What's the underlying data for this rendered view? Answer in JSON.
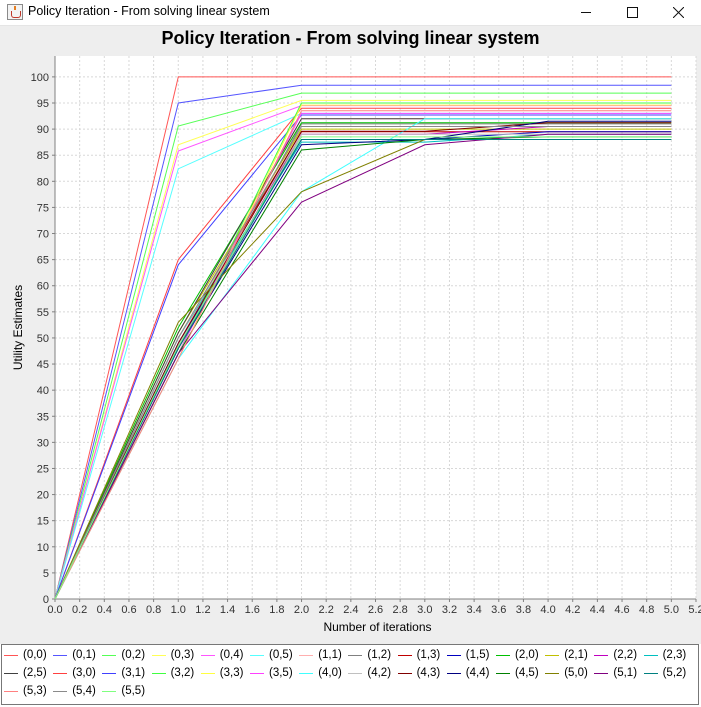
{
  "window": {
    "title": "Policy Iteration - From solving linear system",
    "minimize_icon": "minimize-icon",
    "maximize_icon": "maximize-icon",
    "close_icon": "close-icon"
  },
  "chart_data": {
    "type": "line",
    "title": "Policy Iteration - From solving linear system",
    "xlabel": "Number of iterations",
    "ylabel": "Utility Estimates",
    "xlim": [
      0,
      5.2
    ],
    "ylim": [
      0,
      104
    ],
    "xticks": [
      "0.0",
      "0.2",
      "0.4",
      "0.6",
      "0.8",
      "1.0",
      "1.2",
      "1.4",
      "1.6",
      "1.8",
      "2.0",
      "2.2",
      "2.4",
      "2.6",
      "2.8",
      "3.0",
      "3.2",
      "3.4",
      "3.6",
      "3.8",
      "4.0",
      "4.2",
      "4.4",
      "4.6",
      "4.8",
      "5.0",
      "5.2"
    ],
    "yticks": [
      "0",
      "5",
      "10",
      "15",
      "20",
      "25",
      "30",
      "35",
      "40",
      "45",
      "50",
      "55",
      "60",
      "65",
      "70",
      "75",
      "80",
      "85",
      "90",
      "95",
      "100"
    ],
    "grid": true,
    "legend_position": "bottom",
    "x": [
      0,
      1,
      2,
      3,
      4,
      5
    ],
    "series": [
      {
        "name": "(0,0)",
        "color": "#ff5555",
        "values": [
          0,
          100.0,
          100.0,
          100.0,
          100.0,
          100.0
        ]
      },
      {
        "name": "(0,1)",
        "color": "#5555ff",
        "values": [
          0,
          95.0,
          98.4,
          98.4,
          98.4,
          98.4
        ]
      },
      {
        "name": "(0,2)",
        "color": "#55ff55",
        "values": [
          0,
          90.6,
          96.9,
          96.9,
          96.9,
          96.9
        ]
      },
      {
        "name": "(0,3)",
        "color": "#ffff55",
        "values": [
          0,
          87.0,
          95.5,
          95.5,
          95.5,
          95.5
        ]
      },
      {
        "name": "(0,4)",
        "color": "#ff55ff",
        "values": [
          0,
          85.8,
          94.5,
          94.5,
          94.5,
          94.5
        ]
      },
      {
        "name": "(0,5)",
        "color": "#55ffff",
        "values": [
          0,
          82.4,
          93.0,
          93.0,
          93.0,
          93.0
        ]
      },
      {
        "name": "(1,1)",
        "color": "#ffafaf",
        "values": [
          0,
          49.0,
          92.0,
          92.0,
          92.0,
          92.0
        ]
      },
      {
        "name": "(1,2)",
        "color": "#808080",
        "values": [
          0,
          48.0,
          91.0,
          91.0,
          91.0,
          91.0
        ]
      },
      {
        "name": "(1,3)",
        "color": "#c00000",
        "values": [
          0,
          50.0,
          89.5,
          89.5,
          89.5,
          89.5
        ]
      },
      {
        "name": "(1,5)",
        "color": "#0000c0",
        "values": [
          0,
          49.0,
          88.0,
          88.0,
          89.5,
          89.5
        ]
      },
      {
        "name": "(2,0)",
        "color": "#00c000",
        "values": [
          0,
          52.0,
          91.2,
          91.2,
          91.2,
          91.2
        ]
      },
      {
        "name": "(2,1)",
        "color": "#c0c000",
        "values": [
          0,
          51.0,
          90.0,
          90.0,
          90.0,
          90.0
        ]
      },
      {
        "name": "(2,2)",
        "color": "#c000c0",
        "values": [
          0,
          48.0,
          89.0,
          89.0,
          90.5,
          90.5
        ]
      },
      {
        "name": "(2,3)",
        "color": "#00c0c0",
        "values": [
          0,
          50.0,
          87.5,
          87.5,
          89.0,
          89.0
        ]
      },
      {
        "name": "(2,5)",
        "color": "#404040",
        "values": [
          0,
          51.0,
          92.0,
          92.0,
          92.0,
          92.0
        ]
      },
      {
        "name": "(3,0)",
        "color": "#ff4040",
        "values": [
          0,
          65.0,
          94.0,
          94.0,
          94.0,
          94.0
        ]
      },
      {
        "name": "(3,1)",
        "color": "#4040ff",
        "values": [
          0,
          64.0,
          92.7,
          92.7,
          92.7,
          92.7
        ]
      },
      {
        "name": "(3,2)",
        "color": "#40ff40",
        "values": [
          0,
          47.0,
          95.0,
          95.0,
          95.0,
          95.0
        ]
      },
      {
        "name": "(3,3)",
        "color": "#ffff40",
        "values": [
          0,
          46.0,
          94.6,
          94.6,
          94.6,
          94.6
        ]
      },
      {
        "name": "(3,5)",
        "color": "#ff40ff",
        "values": [
          0,
          47.0,
          93.0,
          93.0,
          93.0,
          93.0
        ]
      },
      {
        "name": "(4,0)",
        "color": "#40ffff",
        "values": [
          0,
          46.0,
          78.0,
          92.0,
          92.0,
          92.0
        ]
      },
      {
        "name": "(4,2)",
        "color": "#c0c0c0",
        "values": [
          0,
          50.0,
          89.0,
          89.0,
          89.0,
          89.0
        ]
      },
      {
        "name": "(4,3)",
        "color": "#800000",
        "values": [
          0,
          49.0,
          89.6,
          89.6,
          91.2,
          91.2
        ]
      },
      {
        "name": "(4,4)",
        "color": "#000080",
        "values": [
          0,
          48.0,
          87.0,
          88.0,
          91.5,
          91.5
        ]
      },
      {
        "name": "(4,5)",
        "color": "#008000",
        "values": [
          0,
          47.0,
          86.0,
          88.0,
          88.5,
          88.5
        ]
      },
      {
        "name": "(5,0)",
        "color": "#808000",
        "values": [
          0,
          53.0,
          78.0,
          88.0,
          88.0,
          88.0
        ]
      },
      {
        "name": "(5,1)",
        "color": "#800080",
        "values": [
          0,
          47.0,
          76.0,
          87.0,
          89.0,
          89.0
        ]
      },
      {
        "name": "(5,2)",
        "color": "#008080",
        "values": [
          0,
          48.0,
          88.0,
          88.0,
          88.0,
          88.0
        ]
      },
      {
        "name": "(5,3)",
        "color": "#ff8080",
        "values": [
          0,
          46.0,
          93.5,
          93.5,
          93.5,
          93.5
        ]
      },
      {
        "name": "(5,4)",
        "color": "#8a8a8a",
        "values": [
          0,
          50.0,
          90.5,
          90.5,
          90.5,
          90.5
        ]
      },
      {
        "name": "(5,5)",
        "color": "#80ff80",
        "values": [
          0,
          48.5,
          88.5,
          88.5,
          88.5,
          88.5
        ]
      }
    ]
  }
}
